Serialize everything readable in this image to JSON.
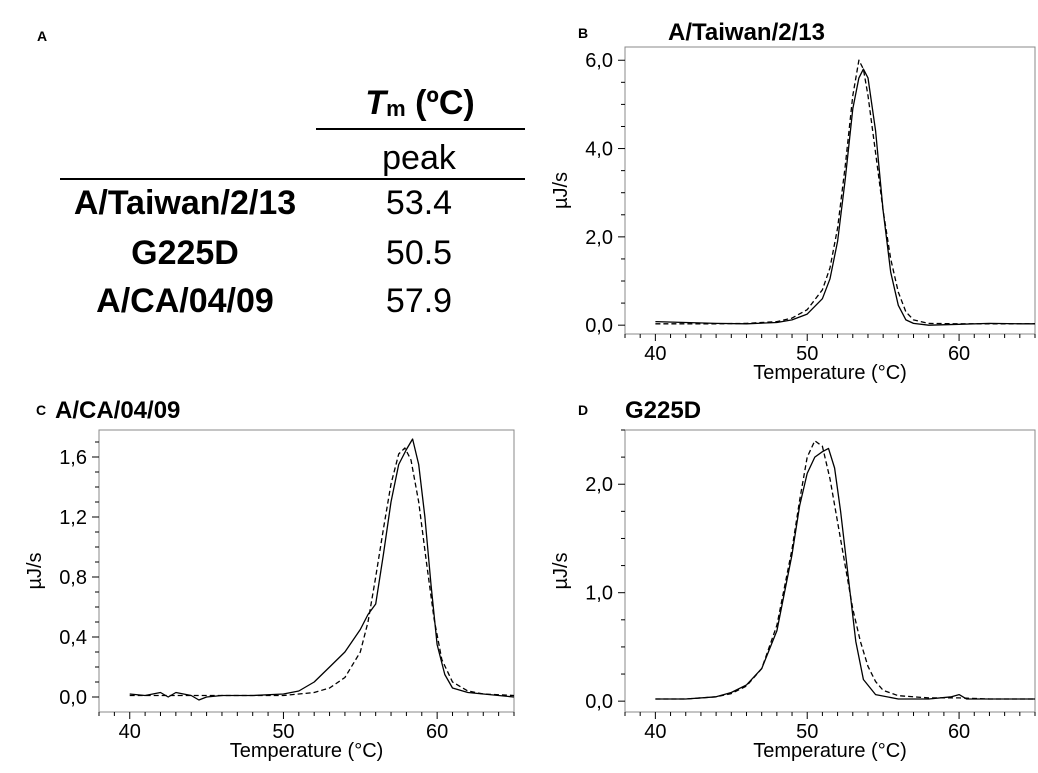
{
  "panel_a": {
    "letter": "A",
    "header_symbol": "T",
    "header_sub": "m",
    "header_unit": "(ºC)",
    "subheader": "peak",
    "rows": [
      {
        "name": "A/Taiwan/2/13",
        "value": "53.4"
      },
      {
        "name": "G225D",
        "value": "50.5"
      },
      {
        "name": "A/CA/04/09",
        "value": "57.9"
      }
    ]
  },
  "chart_data": [
    {
      "type": "line",
      "panel": "B",
      "title": "A/Taiwan/2/13",
      "xlabel": "Temperature (°C)",
      "ylabel": "µJ/s",
      "xlim": [
        38,
        65
      ],
      "ylim": [
        -0.2,
        6.3
      ],
      "xticks": [
        40,
        50,
        60
      ],
      "xtick_labels": [
        "40",
        "50",
        "60"
      ],
      "yticks": [
        0,
        2,
        4,
        6
      ],
      "ytick_labels": [
        "0,0",
        "2,0",
        "4,0",
        "6,0"
      ],
      "series": [
        {
          "style": "solid",
          "points": [
            [
              40,
              0.08
            ],
            [
              42,
              0.06
            ],
            [
              44,
              0.04
            ],
            [
              46,
              0.03
            ],
            [
              48,
              0.06
            ],
            [
              49,
              0.12
            ],
            [
              50,
              0.25
            ],
            [
              51,
              0.6
            ],
            [
              51.5,
              1.05
            ],
            [
              52,
              1.9
            ],
            [
              52.5,
              3.3
            ],
            [
              53,
              4.9
            ],
            [
              53.4,
              5.6
            ],
            [
              53.7,
              5.8
            ],
            [
              54,
              5.6
            ],
            [
              54.5,
              4.4
            ],
            [
              55,
              2.6
            ],
            [
              55.5,
              1.2
            ],
            [
              56,
              0.45
            ],
            [
              56.5,
              0.12
            ],
            [
              57,
              0.04
            ],
            [
              58,
              0.0
            ],
            [
              60,
              0.02
            ],
            [
              62,
              0.04
            ],
            [
              64,
              0.03
            ],
            [
              65,
              0.03
            ]
          ]
        },
        {
          "style": "dashed",
          "points": [
            [
              40,
              0.03
            ],
            [
              42,
              0.03
            ],
            [
              44,
              0.03
            ],
            [
              46,
              0.04
            ],
            [
              48,
              0.08
            ],
            [
              49,
              0.16
            ],
            [
              50,
              0.35
            ],
            [
              51,
              0.8
            ],
            [
              51.5,
              1.3
            ],
            [
              52,
              2.2
            ],
            [
              52.5,
              3.6
            ],
            [
              53,
              5.2
            ],
            [
              53.4,
              6.0
            ],
            [
              53.7,
              5.8
            ],
            [
              54,
              5.2
            ],
            [
              54.5,
              3.9
            ],
            [
              55,
              2.6
            ],
            [
              55.5,
              1.5
            ],
            [
              56,
              0.75
            ],
            [
              56.5,
              0.3
            ],
            [
              57,
              0.12
            ],
            [
              58,
              0.04
            ],
            [
              60,
              0.03
            ],
            [
              62,
              0.03
            ],
            [
              64,
              0.03
            ],
            [
              65,
              0.03
            ]
          ]
        }
      ]
    },
    {
      "type": "line",
      "panel": "C",
      "title": "A/CA/04/09",
      "xlabel": "Temperature (°C)",
      "ylabel": "µJ/s",
      "xlim": [
        38,
        65
      ],
      "ylim": [
        -0.1,
        1.78
      ],
      "xticks": [
        40,
        50,
        60
      ],
      "xtick_labels": [
        "40",
        "50",
        "60"
      ],
      "yticks": [
        0,
        0.4,
        0.8,
        1.2,
        1.6
      ],
      "ytick_labels": [
        "0,0",
        "0,4",
        "0,8",
        "1,2",
        "1,6"
      ],
      "series": [
        {
          "style": "solid",
          "points": [
            [
              40,
              0.02
            ],
            [
              41,
              0.01
            ],
            [
              42,
              0.03
            ],
            [
              42.5,
              0.0
            ],
            [
              43,
              0.03
            ],
            [
              44,
              0.01
            ],
            [
              44.5,
              -0.02
            ],
            [
              45,
              0.0
            ],
            [
              46,
              0.01
            ],
            [
              48,
              0.01
            ],
            [
              50,
              0.02
            ],
            [
              51,
              0.04
            ],
            [
              52,
              0.1
            ],
            [
              53,
              0.2
            ],
            [
              54,
              0.3
            ],
            [
              55,
              0.45
            ],
            [
              55.5,
              0.55
            ],
            [
              56,
              0.62
            ],
            [
              56.5,
              0.95
            ],
            [
              57,
              1.3
            ],
            [
              57.5,
              1.55
            ],
            [
              58,
              1.65
            ],
            [
              58.4,
              1.72
            ],
            [
              58.8,
              1.55
            ],
            [
              59.2,
              1.2
            ],
            [
              59.6,
              0.75
            ],
            [
              60,
              0.35
            ],
            [
              60.5,
              0.15
            ],
            [
              61,
              0.06
            ],
            [
              62,
              0.03
            ],
            [
              63,
              0.02
            ],
            [
              64,
              0.01
            ],
            [
              65,
              0.0
            ]
          ]
        },
        {
          "style": "dashed",
          "points": [
            [
              40,
              0.01
            ],
            [
              45,
              0.01
            ],
            [
              50,
              0.01
            ],
            [
              51,
              0.02
            ],
            [
              52,
              0.03
            ],
            [
              53,
              0.06
            ],
            [
              54,
              0.13
            ],
            [
              55,
              0.3
            ],
            [
              55.5,
              0.5
            ],
            [
              56,
              0.8
            ],
            [
              56.5,
              1.12
            ],
            [
              57,
              1.42
            ],
            [
              57.5,
              1.62
            ],
            [
              57.9,
              1.66
            ],
            [
              58.3,
              1.58
            ],
            [
              58.8,
              1.3
            ],
            [
              59.3,
              0.9
            ],
            [
              59.8,
              0.52
            ],
            [
              60.3,
              0.25
            ],
            [
              61,
              0.1
            ],
            [
              62,
              0.04
            ],
            [
              63,
              0.02
            ],
            [
              65,
              0.01
            ]
          ]
        }
      ]
    },
    {
      "type": "line",
      "panel": "D",
      "title": "G225D",
      "xlabel": "Temperature (°C)",
      "ylabel": "µJ/s",
      "xlim": [
        38,
        65
      ],
      "ylim": [
        -0.1,
        2.5
      ],
      "xticks": [
        40,
        50,
        60
      ],
      "xtick_labels": [
        "40",
        "50",
        "60"
      ],
      "yticks": [
        0,
        1,
        2
      ],
      "ytick_labels": [
        "0,0",
        "1,0",
        "2,0"
      ],
      "series": [
        {
          "style": "solid",
          "points": [
            [
              40,
              0.02
            ],
            [
              42,
              0.02
            ],
            [
              44,
              0.04
            ],
            [
              45,
              0.08
            ],
            [
              46,
              0.15
            ],
            [
              47,
              0.3
            ],
            [
              48,
              0.65
            ],
            [
              49,
              1.35
            ],
            [
              49.5,
              1.8
            ],
            [
              50,
              2.1
            ],
            [
              50.5,
              2.25
            ],
            [
              51,
              2.3
            ],
            [
              51.4,
              2.33
            ],
            [
              51.8,
              2.15
            ],
            [
              52.2,
              1.75
            ],
            [
              52.7,
              1.15
            ],
            [
              53.2,
              0.55
            ],
            [
              53.7,
              0.2
            ],
            [
              54.5,
              0.06
            ],
            [
              56,
              0.02
            ],
            [
              58,
              0.02
            ],
            [
              59.5,
              0.04
            ],
            [
              60,
              0.06
            ],
            [
              60.5,
              0.02
            ],
            [
              62,
              0.02
            ],
            [
              65,
              0.02
            ]
          ]
        },
        {
          "style": "dashed",
          "points": [
            [
              40,
              0.02
            ],
            [
              42,
              0.02
            ],
            [
              44,
              0.04
            ],
            [
              45,
              0.07
            ],
            [
              46,
              0.14
            ],
            [
              47,
              0.3
            ],
            [
              48,
              0.7
            ],
            [
              49,
              1.4
            ],
            [
              49.5,
              1.85
            ],
            [
              50,
              2.25
            ],
            [
              50.5,
              2.4
            ],
            [
              51,
              2.35
            ],
            [
              51.5,
              2.05
            ],
            [
              52,
              1.65
            ],
            [
              52.5,
              1.25
            ],
            [
              53,
              0.85
            ],
            [
              53.5,
              0.55
            ],
            [
              54,
              0.32
            ],
            [
              54.5,
              0.18
            ],
            [
              55,
              0.1
            ],
            [
              56,
              0.05
            ],
            [
              58,
              0.03
            ],
            [
              60,
              0.03
            ],
            [
              62,
              0.02
            ],
            [
              65,
              0.02
            ]
          ]
        }
      ]
    }
  ]
}
